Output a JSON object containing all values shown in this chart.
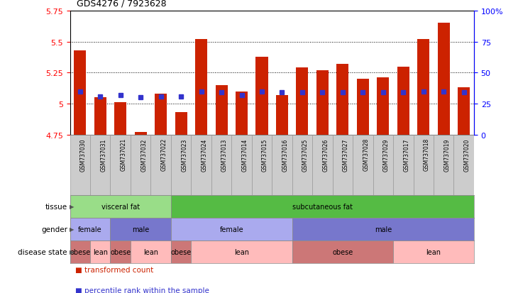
{
  "title": "GDS4276 / 7923628",
  "samples": [
    "GSM737030",
    "GSM737031",
    "GSM737021",
    "GSM737032",
    "GSM737022",
    "GSM737023",
    "GSM737024",
    "GSM737013",
    "GSM737014",
    "GSM737015",
    "GSM737016",
    "GSM737025",
    "GSM737026",
    "GSM737027",
    "GSM737028",
    "GSM737029",
    "GSM737017",
    "GSM737018",
    "GSM737019",
    "GSM737020"
  ],
  "red_values": [
    5.43,
    5.05,
    5.01,
    4.77,
    5.08,
    4.93,
    5.52,
    5.15,
    5.1,
    5.38,
    5.07,
    5.29,
    5.27,
    5.32,
    5.2,
    5.21,
    5.3,
    5.52,
    5.65,
    5.13
  ],
  "blue_values": [
    5.1,
    5.06,
    5.07,
    5.05,
    5.06,
    5.06,
    5.1,
    5.09,
    5.07,
    5.1,
    5.09,
    5.09,
    5.09,
    5.09,
    5.09,
    5.09,
    5.09,
    5.1,
    5.1,
    5.09
  ],
  "ylim_left": [
    4.75,
    5.75
  ],
  "ylim_right": [
    0,
    100
  ],
  "yticks_left": [
    4.75,
    5.0,
    5.25,
    5.5,
    5.75
  ],
  "ytick_labels_left": [
    "4.75",
    "5",
    "5.25",
    "5.5",
    "5.75"
  ],
  "yticks_right": [
    0,
    25,
    50,
    75,
    100
  ],
  "ytick_labels_right": [
    "0",
    "25",
    "50",
    "75",
    "100%"
  ],
  "grid_values": [
    5.0,
    5.25,
    5.5
  ],
  "bar_color": "#cc2200",
  "blue_color": "#3333cc",
  "bar_bottom": 4.75,
  "tick_bg_color": "#cccccc",
  "tick_border_color": "#999999",
  "tissue_groups": [
    {
      "label": "visceral fat",
      "start": 0,
      "end": 5,
      "color": "#99dd88"
    },
    {
      "label": "subcutaneous fat",
      "start": 5,
      "end": 20,
      "color": "#55bb44"
    }
  ],
  "gender_groups": [
    {
      "label": "female",
      "start": 0,
      "end": 2,
      "color": "#aaaaee"
    },
    {
      "label": "male",
      "start": 2,
      "end": 5,
      "color": "#7777cc"
    },
    {
      "label": "female",
      "start": 5,
      "end": 11,
      "color": "#aaaaee"
    },
    {
      "label": "male",
      "start": 11,
      "end": 20,
      "color": "#7777cc"
    }
  ],
  "disease_groups": [
    {
      "label": "obese",
      "start": 0,
      "end": 1,
      "color": "#cc7777"
    },
    {
      "label": "lean",
      "start": 1,
      "end": 2,
      "color": "#ffbbbb"
    },
    {
      "label": "obese",
      "start": 2,
      "end": 3,
      "color": "#cc7777"
    },
    {
      "label": "lean",
      "start": 3,
      "end": 5,
      "color": "#ffbbbb"
    },
    {
      "label": "obese",
      "start": 5,
      "end": 6,
      "color": "#cc7777"
    },
    {
      "label": "lean",
      "start": 6,
      "end": 11,
      "color": "#ffbbbb"
    },
    {
      "label": "obese",
      "start": 11,
      "end": 16,
      "color": "#cc7777"
    },
    {
      "label": "lean",
      "start": 16,
      "end": 20,
      "color": "#ffbbbb"
    }
  ],
  "row_labels": [
    "tissue",
    "gender",
    "disease state"
  ],
  "legend_red": "transformed count",
  "legend_blue": "percentile rank within the sample"
}
